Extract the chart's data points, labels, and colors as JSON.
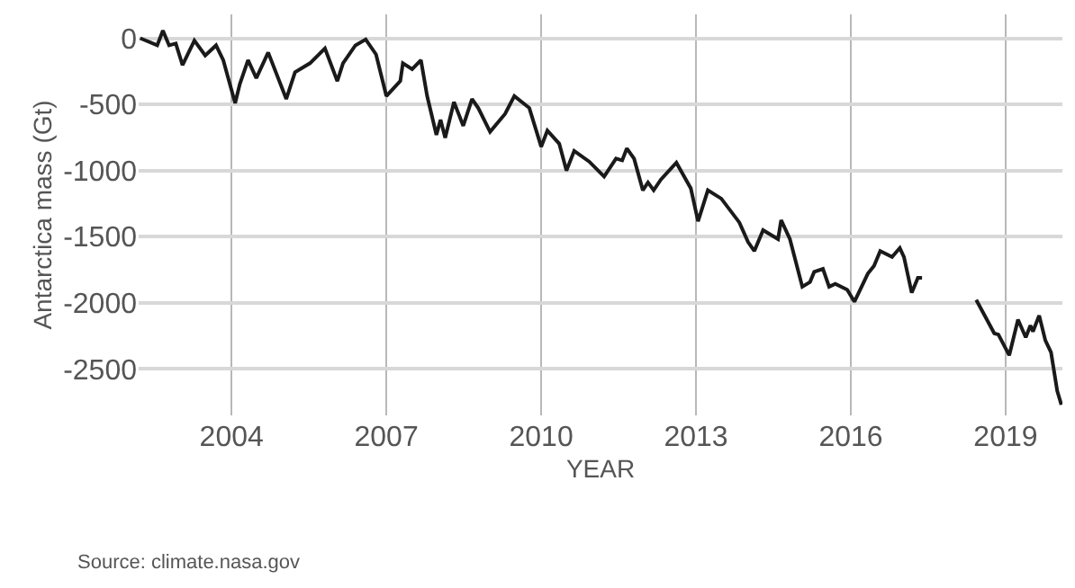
{
  "chart_data": {
    "type": "line",
    "xlabel": "YEAR",
    "ylabel": "Antarctica mass (Gt)",
    "annotations": [
      "Source: climate.nasa.gov"
    ],
    "xlim": [
      2002.2,
      2020.1
    ],
    "xticks": [
      2004,
      2007,
      2010,
      2013,
      2016,
      2019
    ],
    "ylim": [
      -2850,
      180
    ],
    "yticks": [
      0,
      -500,
      -1000,
      -1500,
      -2000,
      -2500
    ],
    "grid": true,
    "marker": "none",
    "line_style": "solid",
    "series": [
      {
        "color": "#1a1a1a",
        "x": [
          2002.23,
          2002.56,
          2002.67,
          2002.79,
          2002.92,
          2003.05,
          2003.28,
          2003.49,
          2003.7,
          2003.84,
          2004.07,
          2004.16,
          2004.32,
          2004.48,
          2004.71,
          2005.06,
          2005.23,
          2005.52,
          2005.81,
          2006.05,
          2006.16,
          2006.4,
          2006.6,
          2006.8,
          2007.0,
          2007.27,
          2007.32,
          2007.5,
          2007.67,
          2007.79,
          2007.97,
          2008.05,
          2008.14,
          2008.31,
          2008.49,
          2008.66,
          2008.78,
          2009.01,
          2009.3,
          2009.48,
          2009.77,
          2010.0,
          2010.12,
          2010.35,
          2010.49,
          2010.64,
          2010.93,
          2011.22,
          2011.45,
          2011.57,
          2011.66,
          2011.8,
          2011.97,
          2012.07,
          2012.18,
          2012.32,
          2012.62,
          2012.9,
          2013.04,
          2013.23,
          2013.49,
          2013.84,
          2014.01,
          2014.13,
          2014.3,
          2014.59,
          2014.65,
          2014.82,
          2015.06,
          2015.21,
          2015.29,
          2015.46,
          2015.58,
          2015.7,
          2015.93,
          2016.07,
          2016.33,
          2016.45,
          2016.57,
          2016.8,
          2016.95,
          2017.03,
          2017.18,
          2017.3,
          2017.38,
          2017.9,
          2018.43,
          2018.78,
          2018.86,
          2019.07,
          2019.24,
          2019.39,
          2019.48,
          2019.53,
          2019.65,
          2019.77,
          2019.88,
          2020.0,
          2020.08
        ],
        "values": [
          0,
          -54,
          58,
          -54,
          -40,
          -203,
          -18,
          -131,
          -54,
          -166,
          -491,
          -347,
          -166,
          -301,
          -108,
          -459,
          -257,
          -189,
          -77,
          -324,
          -189,
          -54,
          -9,
          -122,
          -437,
          -324,
          -189,
          -234,
          -166,
          -437,
          -730,
          -617,
          -752,
          -482,
          -662,
          -459,
          -527,
          -707,
          -572,
          -437,
          -527,
          -820,
          -698,
          -797,
          -1000,
          -851,
          -932,
          -1045,
          -910,
          -923,
          -833,
          -910,
          -1149,
          -1090,
          -1149,
          -1068,
          -941,
          -1135,
          -1383,
          -1149,
          -1212,
          -1392,
          -1541,
          -1608,
          -1450,
          -1518,
          -1374,
          -1518,
          -1878,
          -1842,
          -1766,
          -1743,
          -1878,
          -1856,
          -1901,
          -1991,
          -1779,
          -1721,
          -1608,
          -1653,
          -1585,
          -1653,
          -1923,
          -1811,
          -1811,
          null,
          -1977,
          -2230,
          -2239,
          -2396,
          -2126,
          -2261,
          -2171,
          -2216,
          -2095,
          -2284,
          -2374,
          -2666,
          -2770
        ]
      }
    ]
  }
}
